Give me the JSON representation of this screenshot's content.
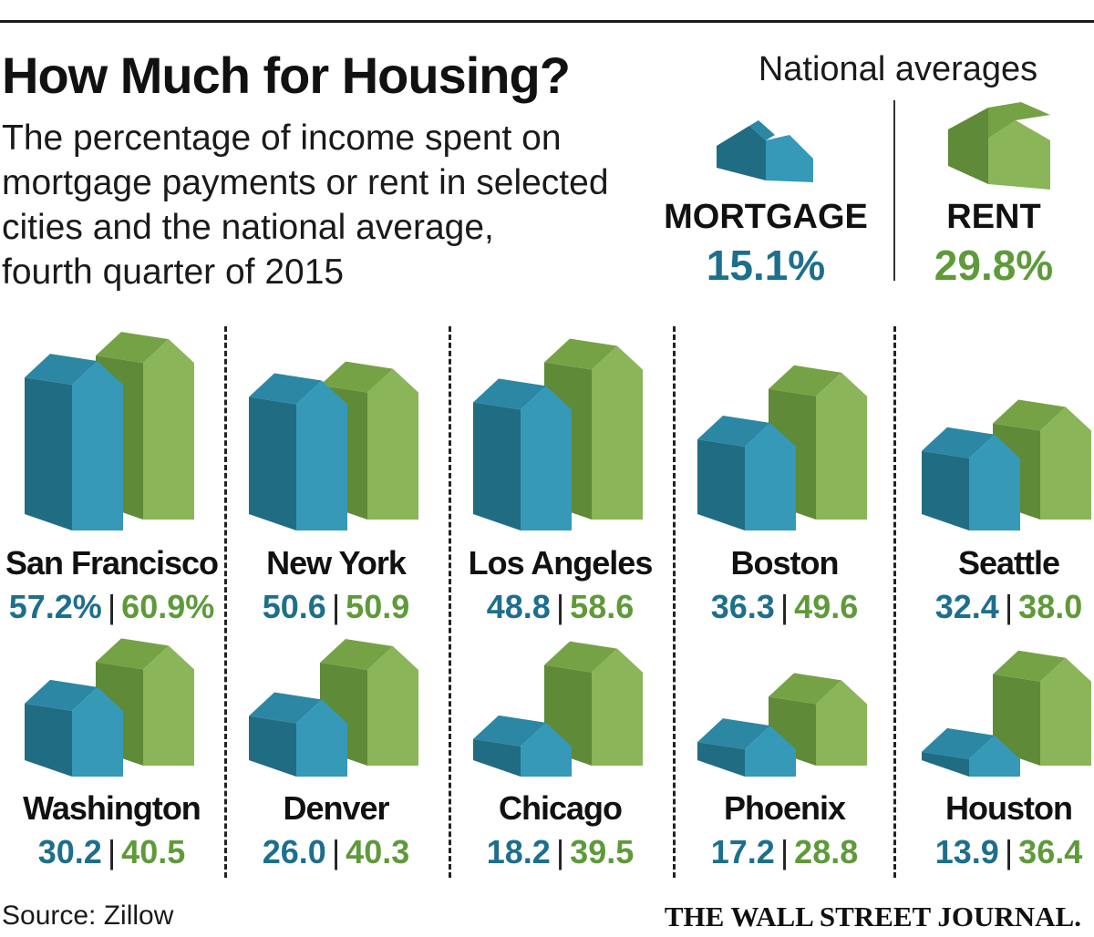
{
  "header": {
    "title": "How Much for Housing?",
    "subtitle_lines": [
      "The percentage of income spent on",
      "mortgage payments or rent in selected",
      "cities and the national average,",
      "fourth quarter of 2015"
    ]
  },
  "national": {
    "heading": "National averages",
    "mortgage_label": "MORTGAGE",
    "mortgage_value": "15.1%",
    "rent_label": "RENT",
    "rent_value": "29.8%"
  },
  "colors": {
    "mortgage_text": "#1d6f8c",
    "rent_text": "#5e9a3a",
    "mortgage_front": "#3599b7",
    "mortgage_side": "#206c83",
    "mortgage_roof": "#2b87a3",
    "rent_front": "#8ab558",
    "rent_side": "#5f8a37",
    "rent_roof": "#76a246"
  },
  "chart_data": {
    "type": "bar",
    "title": "How Much for Housing?",
    "subtitle": "The percentage of income spent on mortgage payments or rent in selected cities and the national average, fourth quarter of 2015",
    "series_names": [
      "Mortgage",
      "Rent"
    ],
    "national_average": {
      "mortgage": 15.1,
      "rent": 29.8
    },
    "cities": [
      {
        "name": "San Francisco",
        "mortgage": 57.2,
        "rent": 60.9,
        "mortgage_label": "57.2%",
        "rent_label": "60.9%"
      },
      {
        "name": "New York",
        "mortgage": 50.6,
        "rent": 50.9,
        "mortgage_label": "50.6",
        "rent_label": "50.9"
      },
      {
        "name": "Los Angeles",
        "mortgage": 48.8,
        "rent": 58.6,
        "mortgage_label": "48.8",
        "rent_label": "58.6"
      },
      {
        "name": "Boston",
        "mortgage": 36.3,
        "rent": 49.6,
        "mortgage_label": "36.3",
        "rent_label": "49.6"
      },
      {
        "name": "Seattle",
        "mortgage": 32.4,
        "rent": 38.0,
        "mortgage_label": "32.4",
        "rent_label": "38.0"
      },
      {
        "name": "Washington",
        "mortgage": 30.2,
        "rent": 40.5,
        "mortgage_label": "30.2",
        "rent_label": "40.5"
      },
      {
        "name": "Denver",
        "mortgage": 26.0,
        "rent": 40.3,
        "mortgage_label": "26.0",
        "rent_label": "40.3"
      },
      {
        "name": "Chicago",
        "mortgage": 18.2,
        "rent": 39.5,
        "mortgage_label": "18.2",
        "rent_label": "39.5"
      },
      {
        "name": "Phoenix",
        "mortgage": 17.2,
        "rent": 28.8,
        "mortgage_label": "17.2",
        "rent_label": "28.8"
      },
      {
        "name": "Houston",
        "mortgage": 13.9,
        "rent": 36.4,
        "mortgage_label": "13.9",
        "rent_label": "36.4"
      }
    ],
    "value_separator": "|",
    "source": "Source: Zillow"
  },
  "footer": {
    "source": "Source: Zillow",
    "publisher": "THE WALL STREET JOURNAL."
  }
}
